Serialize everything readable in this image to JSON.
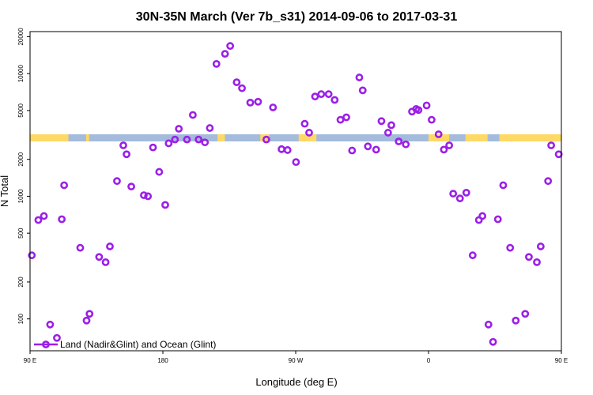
{
  "chart_data": {
    "type": "scatter",
    "title": "30N-35N March (Ver 7b_s31)   2014-09-06 to 2017-03-31",
    "xlabel": "Longitude (deg E)",
    "ylabel": "N Total",
    "y_scale": "log",
    "xlim": [
      90,
      450
    ],
    "ylim": [
      55,
      22000
    ],
    "x_ticks": [
      {
        "value": 90,
        "label": "90 E"
      },
      {
        "value": 180,
        "label": "180"
      },
      {
        "value": 270,
        "label": "90 W"
      },
      {
        "value": 360,
        "label": "0"
      },
      {
        "value": 450,
        "label": "90 E"
      },
      {
        "value": 540,
        "label": "180"
      }
    ],
    "y_ticks": [
      {
        "value": 100,
        "label": "100"
      },
      {
        "value": 200,
        "label": "200"
      },
      {
        "value": 500,
        "label": "500"
      },
      {
        "value": 1000,
        "label": "1000"
      },
      {
        "value": 2000,
        "label": "2000"
      },
      {
        "value": 5000,
        "label": "5000"
      },
      {
        "value": 10000,
        "label": "10000"
      },
      {
        "value": 20000,
        "label": "20000"
      }
    ],
    "surface_band": {
      "y_range": [
        2800,
        3200
      ],
      "land_color": "#FFD966",
      "ocean_color": "#A4BBDC",
      "land_segments": [
        [
          90,
          116
        ],
        [
          128,
          130
        ],
        [
          217,
          222
        ],
        [
          246,
          252
        ],
        [
          272,
          284
        ],
        [
          360,
          374
        ],
        [
          385,
          400
        ],
        [
          408,
          450
        ]
      ]
    },
    "series": [
      {
        "name": "Land (Nadir&Glint) and Ocean (Glint)",
        "color": "#9B1FE8",
        "x": [
          91.2,
          95.6,
          99.4,
          103.6,
          108.2,
          111.5,
          113.1,
          124.0,
          128.3,
          130.3,
          136.8,
          141.2,
          144.1,
          148.9,
          153.2,
          155.4,
          158.6,
          167.1,
          169.9,
          173.3,
          177.5,
          181.6,
          183.9,
          188.2,
          190.8,
          196.3,
          200.3,
          204.2,
          208.5,
          211.8,
          216.3,
          222.1,
          225.6,
          230.0,
          233.6,
          239.2,
          244.5,
          250.1,
          254.6,
          260.4,
          264.5,
          270.2,
          276.1,
          279.1,
          283.1,
          287.3,
          292.3,
          296.4,
          300.3,
          304.3,
          308.2,
          313.1,
          315.4,
          318.9,
          324.5,
          328.1,
          332.6,
          334.8,
          339.8,
          344.6,
          348.8,
          351.6,
          353.2,
          358.7,
          362.1,
          366.8,
          370.4,
          374.0,
          376.7,
          381.3,
          385.6,
          389.9,
          394.1,
          396.5,
          400.6,
          403.7,
          407.0,
          410.6,
          415.3,
          419.1,
          425.5,
          428.0,
          433.4,
          436.0,
          441.0,
          443.1,
          448.2
        ],
        "y": [
          330,
          640,
          690,
          90,
          70,
          650,
          1230,
          380,
          97,
          110,
          320,
          290,
          390,
          1330,
          2600,
          2200,
          1200,
          1020,
          1000,
          2500,
          1580,
          850,
          2700,
          2900,
          3550,
          2900,
          4600,
          2900,
          2750,
          3600,
          12000,
          14500,
          16800,
          8500,
          7600,
          5800,
          5900,
          2900,
          5300,
          2420,
          2380,
          1900,
          3900,
          3300,
          6500,
          6800,
          6800,
          6100,
          4200,
          4400,
          2360,
          9300,
          7300,
          2550,
          2400,
          4100,
          3300,
          3800,
          2800,
          2650,
          4900,
          5150,
          5050,
          5500,
          4200,
          3200,
          2400,
          2600,
          1050,
          960,
          1070,
          330,
          640,
          690,
          90,
          65,
          650,
          1230,
          380,
          97,
          110,
          320,
          290,
          390,
          1330,
          2600,
          2200
        ]
      }
    ],
    "legend": {
      "position": "bottom-left",
      "entries": [
        "Land (Nadir&Glint) and Ocean (Glint)"
      ]
    }
  }
}
